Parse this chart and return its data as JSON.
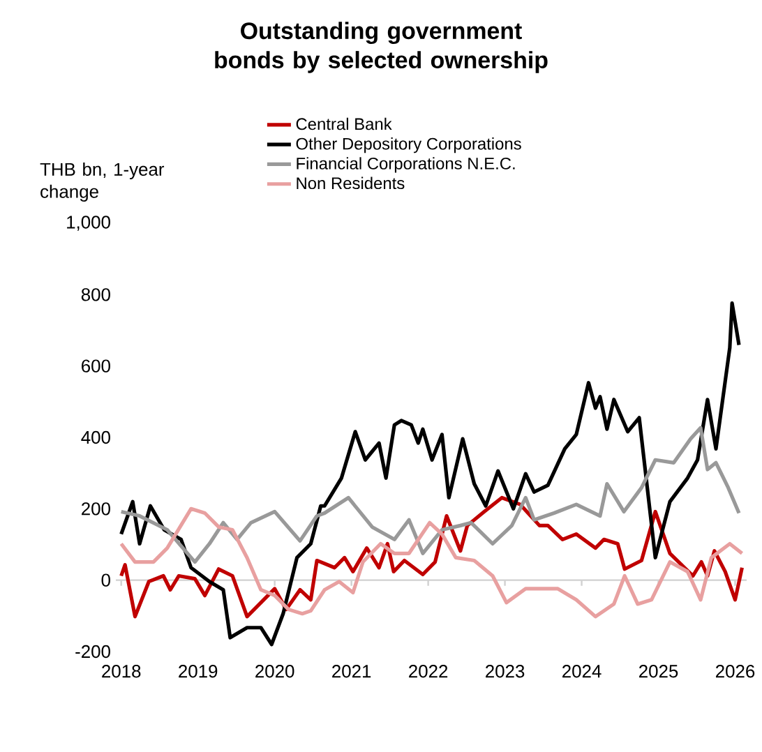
{
  "chart_data": {
    "type": "line",
    "title": "Outstanding government bonds by selected ownership",
    "ylabel": "THB bn, 1-year change",
    "xlim": [
      2017.93,
      2026.15
    ],
    "xticks": [
      2018,
      2019,
      2020,
      2021,
      2022,
      2023,
      2024,
      2025,
      2026
    ],
    "ylim": [
      -200,
      1000
    ],
    "yticks": [
      -200,
      0,
      200,
      400,
      600,
      800,
      {
        "value": 1000,
        "label": "1,000"
      }
    ],
    "legend": "top",
    "line_style": "solid",
    "marker": "none",
    "series": [
      {
        "name": "Central Bank",
        "color": "#c00000",
        "x": [
          2018.0,
          2018.05,
          2018.18,
          2018.36,
          2018.55,
          2018.64,
          2018.75,
          2018.96,
          2019.09,
          2019.27,
          2019.45,
          2019.64,
          2019.82,
          2020.0,
          2020.15,
          2020.33,
          2020.47,
          2020.55,
          2020.6,
          2020.78,
          2020.91,
          2021.02,
          2021.2,
          2021.36,
          2021.47,
          2021.55,
          2021.69,
          2021.93,
          2022.09,
          2022.24,
          2022.42,
          2022.51,
          2022.73,
          2022.96,
          2023.2,
          2023.45,
          2023.56,
          2023.75,
          2023.93,
          2024.18,
          2024.29,
          2024.47,
          2024.56,
          2024.78,
          2024.96,
          2025.15,
          2025.45,
          2025.56,
          2025.64,
          2025.73,
          2025.87,
          2026.0,
          2026.09
        ],
        "values": [
          12,
          43,
          -102,
          -4,
          12,
          -27,
          12,
          4,
          -43,
          31,
          12,
          -102,
          -63,
          -24,
          -82,
          -27,
          -55,
          55,
          51,
          35,
          63,
          24,
          90,
          35,
          102,
          24,
          55,
          16,
          51,
          180,
          82,
          153,
          192,
          231,
          212,
          153,
          153,
          114,
          129,
          90,
          114,
          102,
          31,
          55,
          192,
          75,
          12,
          51,
          12,
          82,
          24,
          -55,
          35
        ]
      },
      {
        "name": "Other Depository Corporations",
        "color": "#000000",
        "x": [
          2018.0,
          2018.15,
          2018.24,
          2018.38,
          2018.56,
          2018.78,
          2018.91,
          2019.15,
          2019.33,
          2019.42,
          2019.64,
          2019.82,
          2019.96,
          2020.11,
          2020.29,
          2020.47,
          2020.6,
          2020.65,
          2020.87,
          2021.05,
          2021.18,
          2021.36,
          2021.45,
          2021.56,
          2021.65,
          2021.78,
          2021.87,
          2021.93,
          2022.05,
          2022.18,
          2022.27,
          2022.45,
          2022.6,
          2022.75,
          2022.91,
          2023.11,
          2023.27,
          2023.38,
          2023.56,
          2023.78,
          2023.93,
          2024.09,
          2024.18,
          2024.24,
          2024.33,
          2024.42,
          2024.6,
          2024.75,
          2024.96,
          2025.15,
          2025.38,
          2025.51,
          2025.64,
          2025.75,
          2025.93,
          2025.96,
          2026.05
        ],
        "values": [
          129,
          220,
          102,
          208,
          141,
          114,
          35,
          -4,
          -27,
          -161,
          -133,
          -133,
          -180,
          -94,
          63,
          102,
          208,
          208,
          286,
          416,
          337,
          384,
          286,
          435,
          447,
          435,
          384,
          423,
          337,
          408,
          231,
          396,
          270,
          208,
          306,
          200,
          298,
          247,
          266,
          368,
          408,
          553,
          482,
          514,
          423,
          506,
          416,
          455,
          63,
          220,
          286,
          337,
          506,
          368,
          651,
          776,
          659
        ]
      },
      {
        "name": "Financial Corporations N.E.C.",
        "color": "#999999",
        "x": [
          2018.0,
          2018.24,
          2018.6,
          2018.96,
          2019.15,
          2019.33,
          2019.51,
          2019.69,
          2020.0,
          2020.33,
          2020.55,
          2020.65,
          2020.96,
          2021.27,
          2021.56,
          2021.75,
          2021.93,
          2022.18,
          2022.42,
          2022.56,
          2022.84,
          2023.09,
          2023.27,
          2023.38,
          2023.64,
          2023.93,
          2024.24,
          2024.33,
          2024.55,
          2024.78,
          2024.96,
          2025.2,
          2025.42,
          2025.55,
          2025.64,
          2025.75,
          2025.91,
          2026.05
        ],
        "values": [
          192,
          180,
          141,
          51,
          102,
          161,
          114,
          161,
          192,
          110,
          180,
          188,
          231,
          149,
          114,
          169,
          75,
          141,
          153,
          161,
          102,
          153,
          231,
          169,
          188,
          212,
          180,
          270,
          192,
          259,
          337,
          329,
          396,
          427,
          310,
          329,
          259,
          188
        ]
      },
      {
        "name": "Non Residents",
        "color": "#e8a0a0",
        "x": [
          2018.0,
          2018.18,
          2018.42,
          2018.6,
          2018.91,
          2019.09,
          2019.27,
          2019.45,
          2019.64,
          2019.82,
          2020.0,
          2020.18,
          2020.36,
          2020.47,
          2020.65,
          2020.84,
          2021.02,
          2021.15,
          2021.38,
          2021.56,
          2021.75,
          2022.02,
          2022.18,
          2022.36,
          2022.6,
          2022.84,
          2023.02,
          2023.27,
          2023.45,
          2023.69,
          2023.93,
          2024.18,
          2024.42,
          2024.56,
          2024.73,
          2024.91,
          2025.15,
          2025.38,
          2025.55,
          2025.69,
          2025.93,
          2026.09
        ],
        "values": [
          102,
          51,
          51,
          90,
          200,
          188,
          149,
          141,
          63,
          -27,
          -43,
          -82,
          -94,
          -86,
          -27,
          -4,
          -35,
          51,
          102,
          75,
          75,
          161,
          129,
          63,
          55,
          12,
          -63,
          -24,
          -24,
          -24,
          -55,
          -102,
          -67,
          12,
          -67,
          -55,
          51,
          24,
          -55,
          63,
          102,
          75
        ]
      }
    ]
  }
}
